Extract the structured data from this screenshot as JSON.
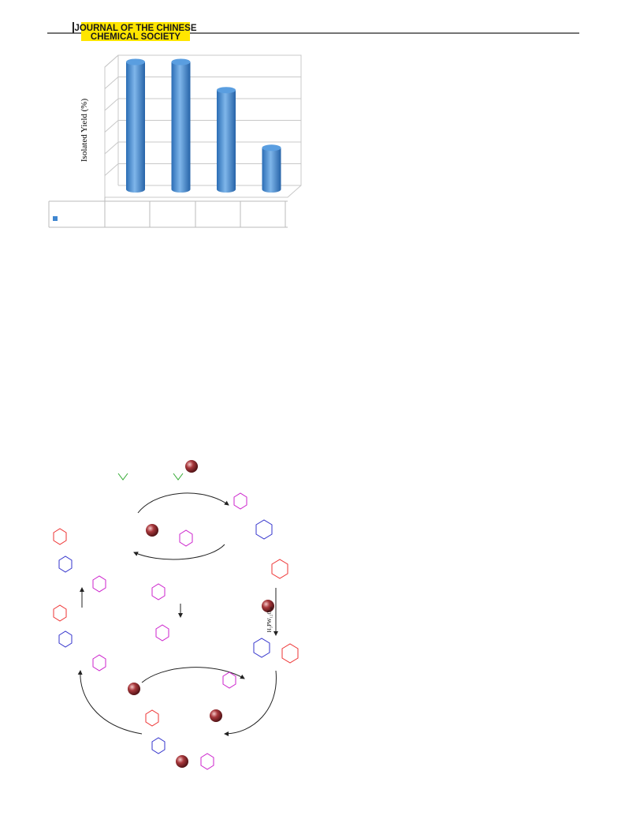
{
  "header": {
    "journal": [
      "JOURNAL OF THE CHINESE",
      "CHEMICAL SOCIETY"
    ]
  },
  "chart_data": {
    "type": "bar",
    "y_label": "Isolated Yield (%)",
    "categories": [
      null,
      null,
      null,
      null
    ],
    "values": [
      95,
      95,
      74,
      31
    ],
    "color": "#3f86d0",
    "ylim": [
      0,
      100
    ],
    "grid": true
  },
  "scheme": {
    "catalyst_label": "H₃PW₁₂O₄₀"
  }
}
